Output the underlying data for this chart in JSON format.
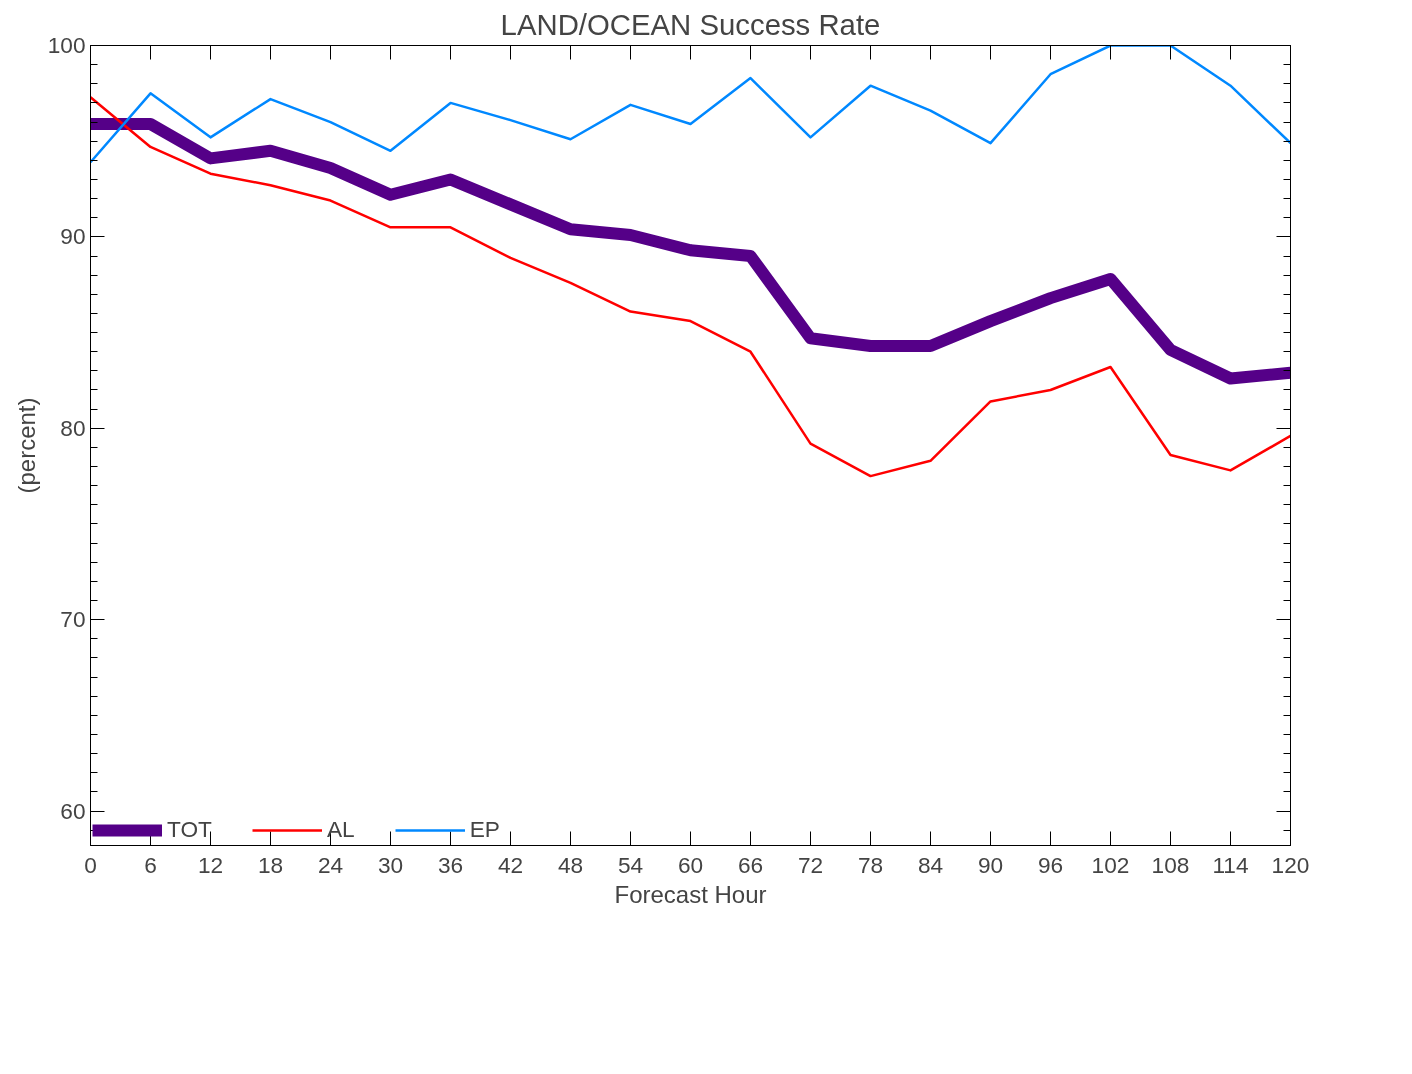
{
  "chart_data": {
    "type": "line",
    "title": "LAND/OCEAN Success Rate",
    "xlabel": "Forecast Hour",
    "ylabel": "(percent)",
    "x": [
      0,
      6,
      12,
      18,
      24,
      30,
      36,
      42,
      48,
      54,
      60,
      66,
      72,
      78,
      84,
      90,
      96,
      102,
      108,
      114,
      120
    ],
    "series": [
      {
        "name": "TOT",
        "color": "#550088",
        "values": [
          95.9,
          95.9,
          94.1,
          94.5,
          93.6,
          92.2,
          93.0,
          91.7,
          90.4,
          90.1,
          89.3,
          89.0,
          84.7,
          84.3,
          84.3,
          85.6,
          86.8,
          87.8,
          84.1,
          82.6,
          82.9
        ]
      },
      {
        "name": "AL",
        "color": "#ff0000",
        "values": [
          97.3,
          94.7,
          93.3,
          92.7,
          91.9,
          90.5,
          90.5,
          88.9,
          87.6,
          86.1,
          85.6,
          84.0,
          79.2,
          77.5,
          78.3,
          81.4,
          82.0,
          83.2,
          78.6,
          77.8,
          79.6
        ]
      },
      {
        "name": "EP",
        "color": "#0088ff",
        "values": [
          93.9,
          97.5,
          95.2,
          97.2,
          96.0,
          94.5,
          97.0,
          96.1,
          95.1,
          96.9,
          95.9,
          98.3,
          95.2,
          97.9,
          96.6,
          94.9,
          98.5,
          100,
          100,
          97.9,
          94.9
        ]
      }
    ],
    "xlim": [
      0,
      120
    ],
    "xticks": [
      0,
      6,
      12,
      18,
      24,
      30,
      36,
      42,
      48,
      54,
      60,
      66,
      72,
      78,
      84,
      90,
      96,
      102,
      108,
      114,
      120
    ],
    "ylim": [
      58.2,
      100
    ],
    "yticks": [
      {
        "value": 59,
        "label": null
      },
      60,
      {
        "value": 61,
        "label": null
      },
      {
        "value": 62,
        "label": null
      },
      {
        "value": 63,
        "label": null
      },
      {
        "value": 64,
        "label": null
      },
      {
        "value": 65,
        "label": null
      },
      {
        "value": 66,
        "label": null
      },
      {
        "value": 67,
        "label": null
      },
      {
        "value": 68,
        "label": null
      },
      {
        "value": 69,
        "label": null
      },
      70,
      {
        "value": 71,
        "label": null
      },
      {
        "value": 72,
        "label": null
      },
      {
        "value": 73,
        "label": null
      },
      {
        "value": 74,
        "label": null
      },
      {
        "value": 75,
        "label": null
      },
      {
        "value": 76,
        "label": null
      },
      {
        "value": 77,
        "label": null
      },
      {
        "value": 78,
        "label": null
      },
      {
        "value": 79,
        "label": null
      },
      80,
      {
        "value": 81,
        "label": null
      },
      {
        "value": 82,
        "label": null
      },
      {
        "value": 83,
        "label": null
      },
      {
        "value": 84,
        "label": null
      },
      {
        "value": 85,
        "label": null
      },
      {
        "value": 86,
        "label": null
      },
      {
        "value": 87,
        "label": null
      },
      {
        "value": 88,
        "label": null
      },
      {
        "value": 89,
        "label": null
      },
      90,
      {
        "value": 91,
        "label": null
      },
      {
        "value": 92,
        "label": null
      },
      {
        "value": 93,
        "label": null
      },
      {
        "value": 94,
        "label": null
      },
      {
        "value": 95,
        "label": null
      },
      {
        "value": 96,
        "label": null
      },
      {
        "value": 97,
        "label": null
      },
      {
        "value": 98,
        "label": null
      },
      {
        "value": 99,
        "label": null
      },
      100
    ],
    "grid": false,
    "legend": "bottom left",
    "line_style": "solid"
  }
}
